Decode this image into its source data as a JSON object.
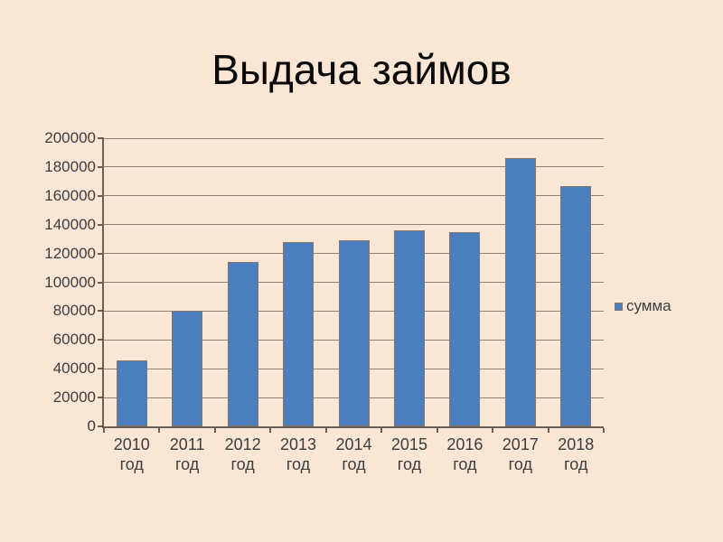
{
  "slide": {
    "title": "Выдача займов",
    "background_color": "#FAE6D5"
  },
  "chart_data": {
    "type": "bar",
    "title": "Выдача займов",
    "categories": [
      "2010 год",
      "2011 год",
      "2012 год",
      "2013 год",
      "2014 год",
      "2015 год",
      "2016 год",
      "2017 год",
      "2018 год"
    ],
    "series": [
      {
        "name": "сумма",
        "values": [
          46000,
          80000,
          114000,
          128000,
          129000,
          136000,
          135000,
          186000,
          167000
        ]
      }
    ],
    "xlabel": "",
    "ylabel": "",
    "ylim": [
      0,
      200000
    ],
    "ytick_step": 20000,
    "ytick_labels": [
      "0",
      "20000",
      "40000",
      "60000",
      "80000",
      "100000",
      "120000",
      "140000",
      "160000",
      "180000",
      "200000"
    ],
    "grid": true,
    "legend_position": "right",
    "colors": {
      "bar_fill": "#4B7EBC",
      "bar_border": "#80766A",
      "gridline": "#8E8173",
      "axis": "#6A5F52",
      "tick_text": "#3D3D3D",
      "title_text": "#0A0A0A",
      "background": "#FAE6D5"
    }
  }
}
